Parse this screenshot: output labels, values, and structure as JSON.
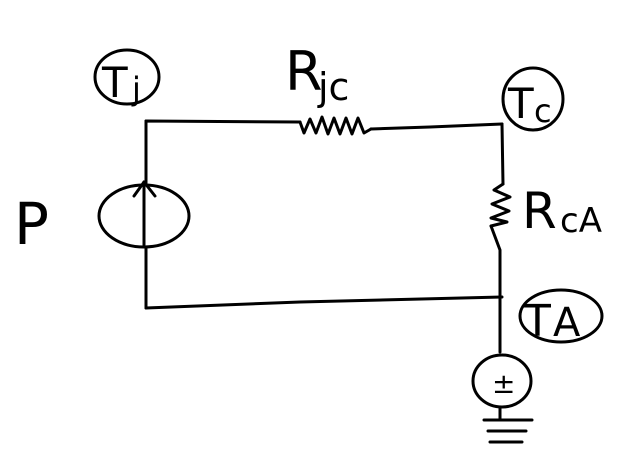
{
  "diagram": {
    "power_label": "P",
    "junction_temp": {
      "main": "T",
      "sub": "j"
    },
    "case_temp": {
      "main": "T",
      "sub": "c"
    },
    "ambient_temp": {
      "main": "T",
      "sub": "A"
    },
    "resistor_jc": {
      "main": "R",
      "sub": "jc"
    },
    "resistor_ca": {
      "main": "R",
      "sub": "cA"
    },
    "source_sign": "±"
  }
}
